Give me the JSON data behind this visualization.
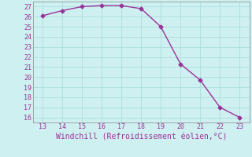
{
  "x": [
    13,
    14,
    15,
    16,
    17,
    18,
    19,
    20,
    21,
    22,
    23
  ],
  "y": [
    26.1,
    26.6,
    27.0,
    27.1,
    27.1,
    26.8,
    25.0,
    21.3,
    19.7,
    17.0,
    16.0
  ],
  "line_color": "#993399",
  "marker": "D",
  "marker_size": 2.5,
  "line_width": 1.0,
  "xlabel": "Windchill (Refroidissement éolien,°C)",
  "xlabel_color": "#993399",
  "xlim": [
    12.5,
    23.5
  ],
  "ylim": [
    15.5,
    27.5
  ],
  "xticks": [
    13,
    14,
    15,
    16,
    17,
    18,
    19,
    20,
    21,
    22,
    23
  ],
  "yticks": [
    16,
    17,
    18,
    19,
    20,
    21,
    22,
    23,
    24,
    25,
    26,
    27
  ],
  "background_color": "#cff0f0",
  "grid_color": "#aadddd",
  "tick_color": "#993399",
  "tick_fontsize": 6,
  "xlabel_fontsize": 7
}
